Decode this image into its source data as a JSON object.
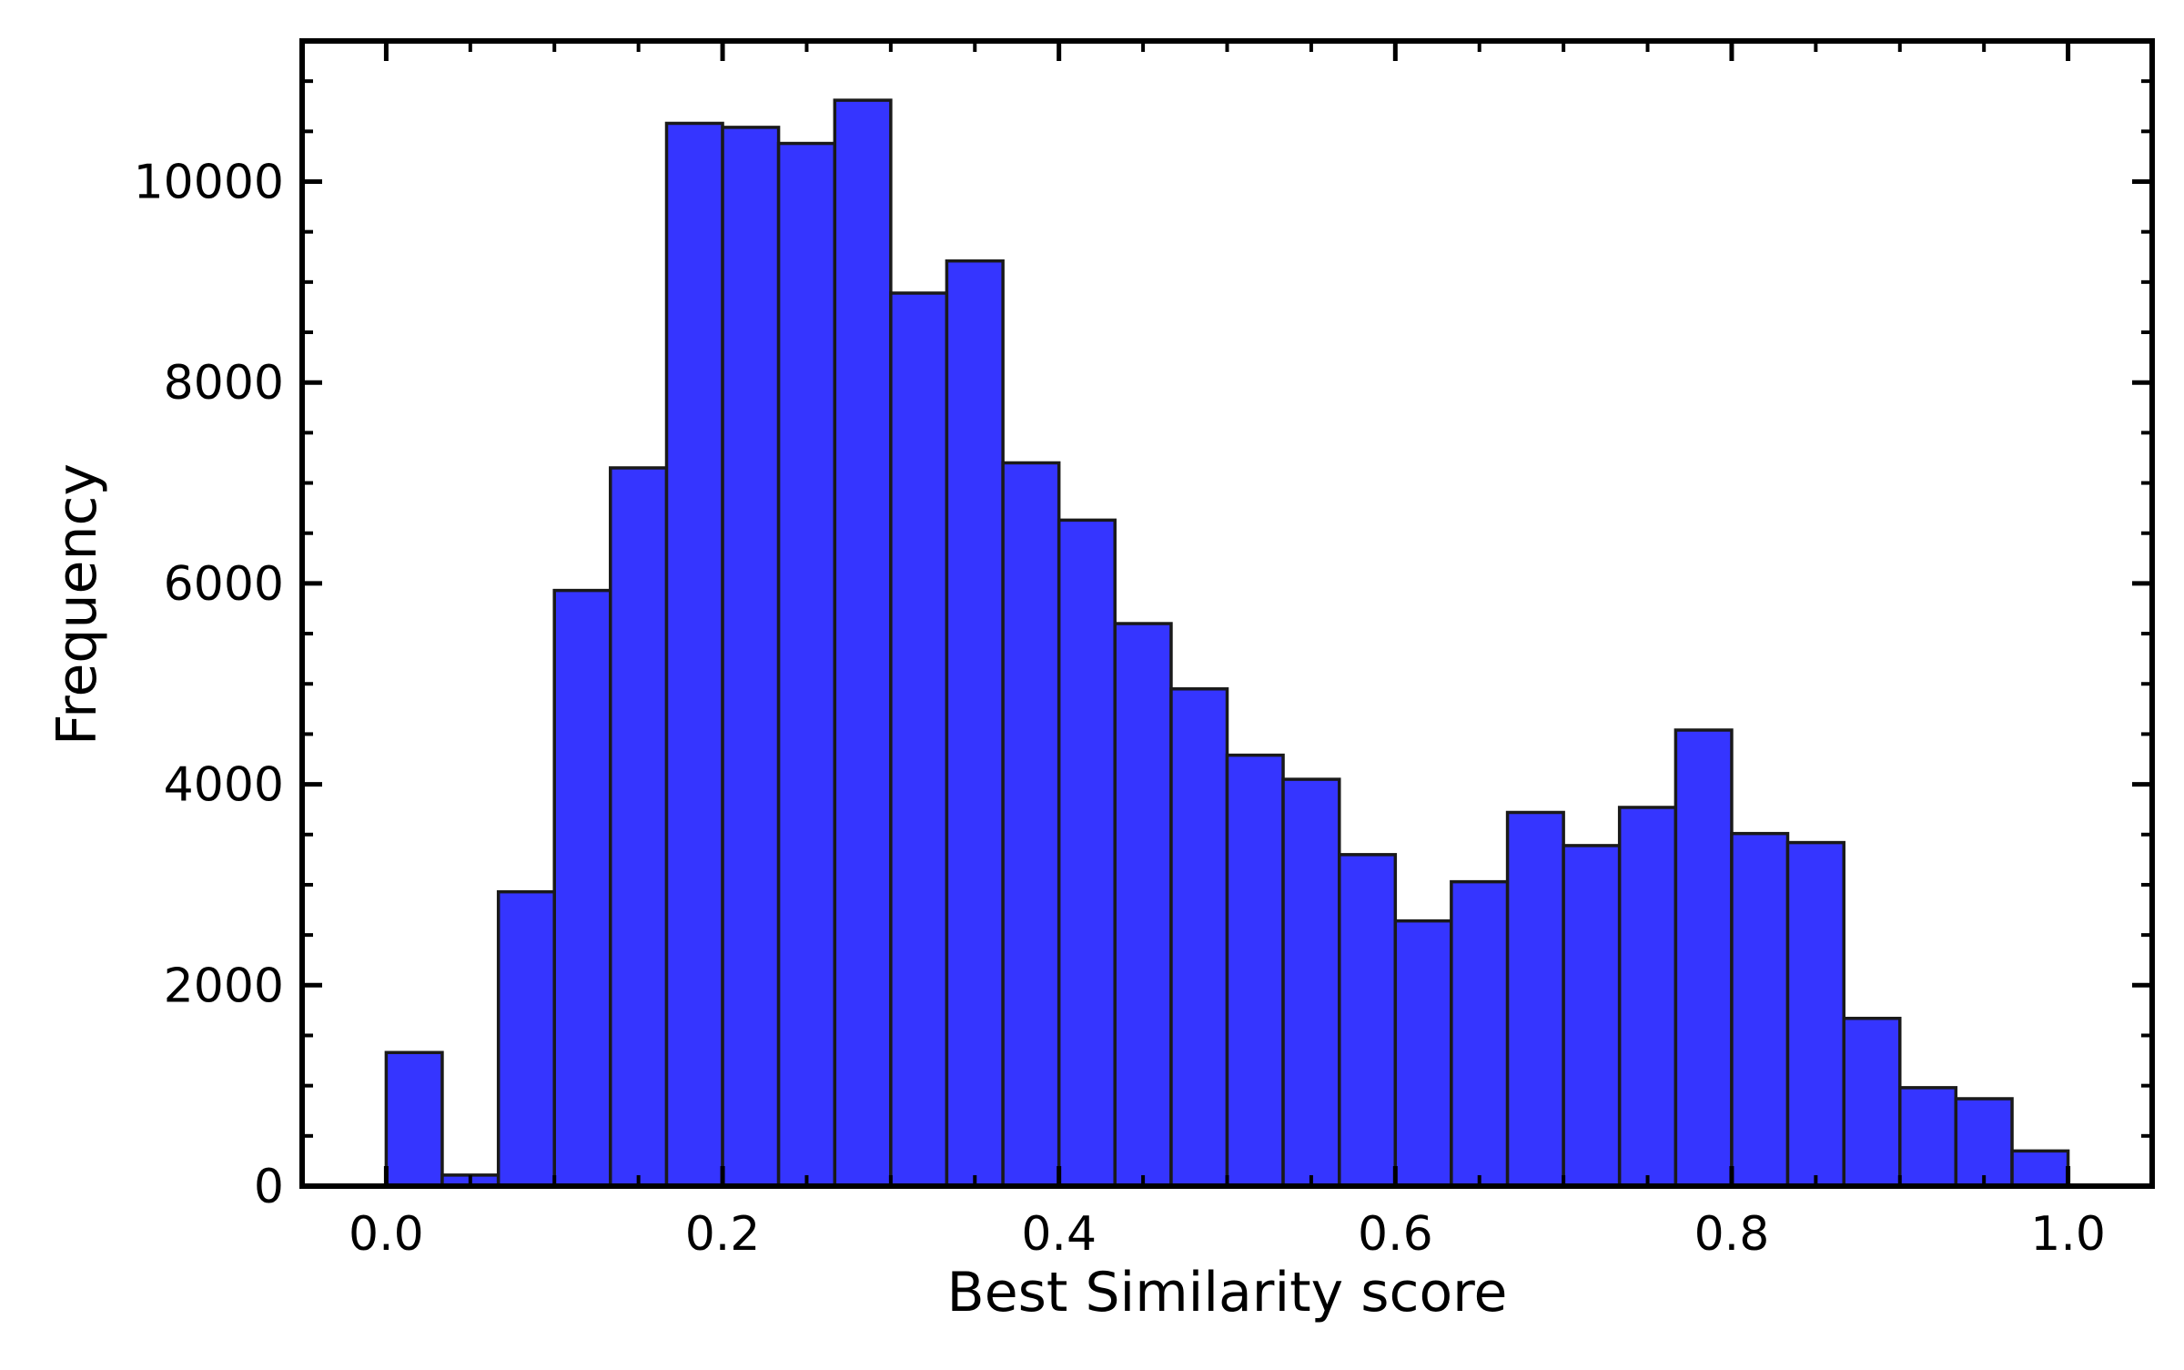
{
  "chart_data": {
    "type": "bar",
    "variant": "histogram",
    "title": "",
    "xlabel": "Best Similarity score",
    "ylabel": "Frequency",
    "xlim": [
      -0.05,
      1.05
    ],
    "ylim": [
      0,
      11400
    ],
    "x_ticks": [
      0.0,
      0.2,
      0.4,
      0.6,
      0.8,
      1.0
    ],
    "x_tick_labels": [
      "0.0",
      "0.2",
      "0.4",
      "0.6",
      "0.8",
      "1.0"
    ],
    "y_ticks": [
      0,
      2000,
      4000,
      6000,
      8000,
      10000
    ],
    "y_tick_labels": [
      "0",
      "2000",
      "4000",
      "6000",
      "8000",
      "10000"
    ],
    "grid": false,
    "bin_edges": [
      0.0,
      0.0333,
      0.0667,
      0.1,
      0.1333,
      0.1667,
      0.2,
      0.2333,
      0.2667,
      0.3,
      0.3333,
      0.3667,
      0.4,
      0.4333,
      0.4667,
      0.5,
      0.5333,
      0.5667,
      0.6,
      0.6333,
      0.6667,
      0.7,
      0.7333,
      0.7667,
      0.8,
      0.8333,
      0.8667,
      0.9,
      0.9333,
      0.9667,
      1.0
    ],
    "values": [
      1330,
      110,
      2930,
      5930,
      7150,
      10580,
      10540,
      10380,
      10810,
      8890,
      9210,
      7200,
      6630,
      5600,
      4950,
      4290,
      4050,
      3300,
      2640,
      3030,
      3720,
      3390,
      3770,
      4540,
      3510,
      3420,
      1670,
      980,
      870,
      350
    ],
    "colors": {
      "bar_fill": "#3535ff",
      "bar_edge": "#1a1a1a",
      "axes": "#000000"
    }
  }
}
